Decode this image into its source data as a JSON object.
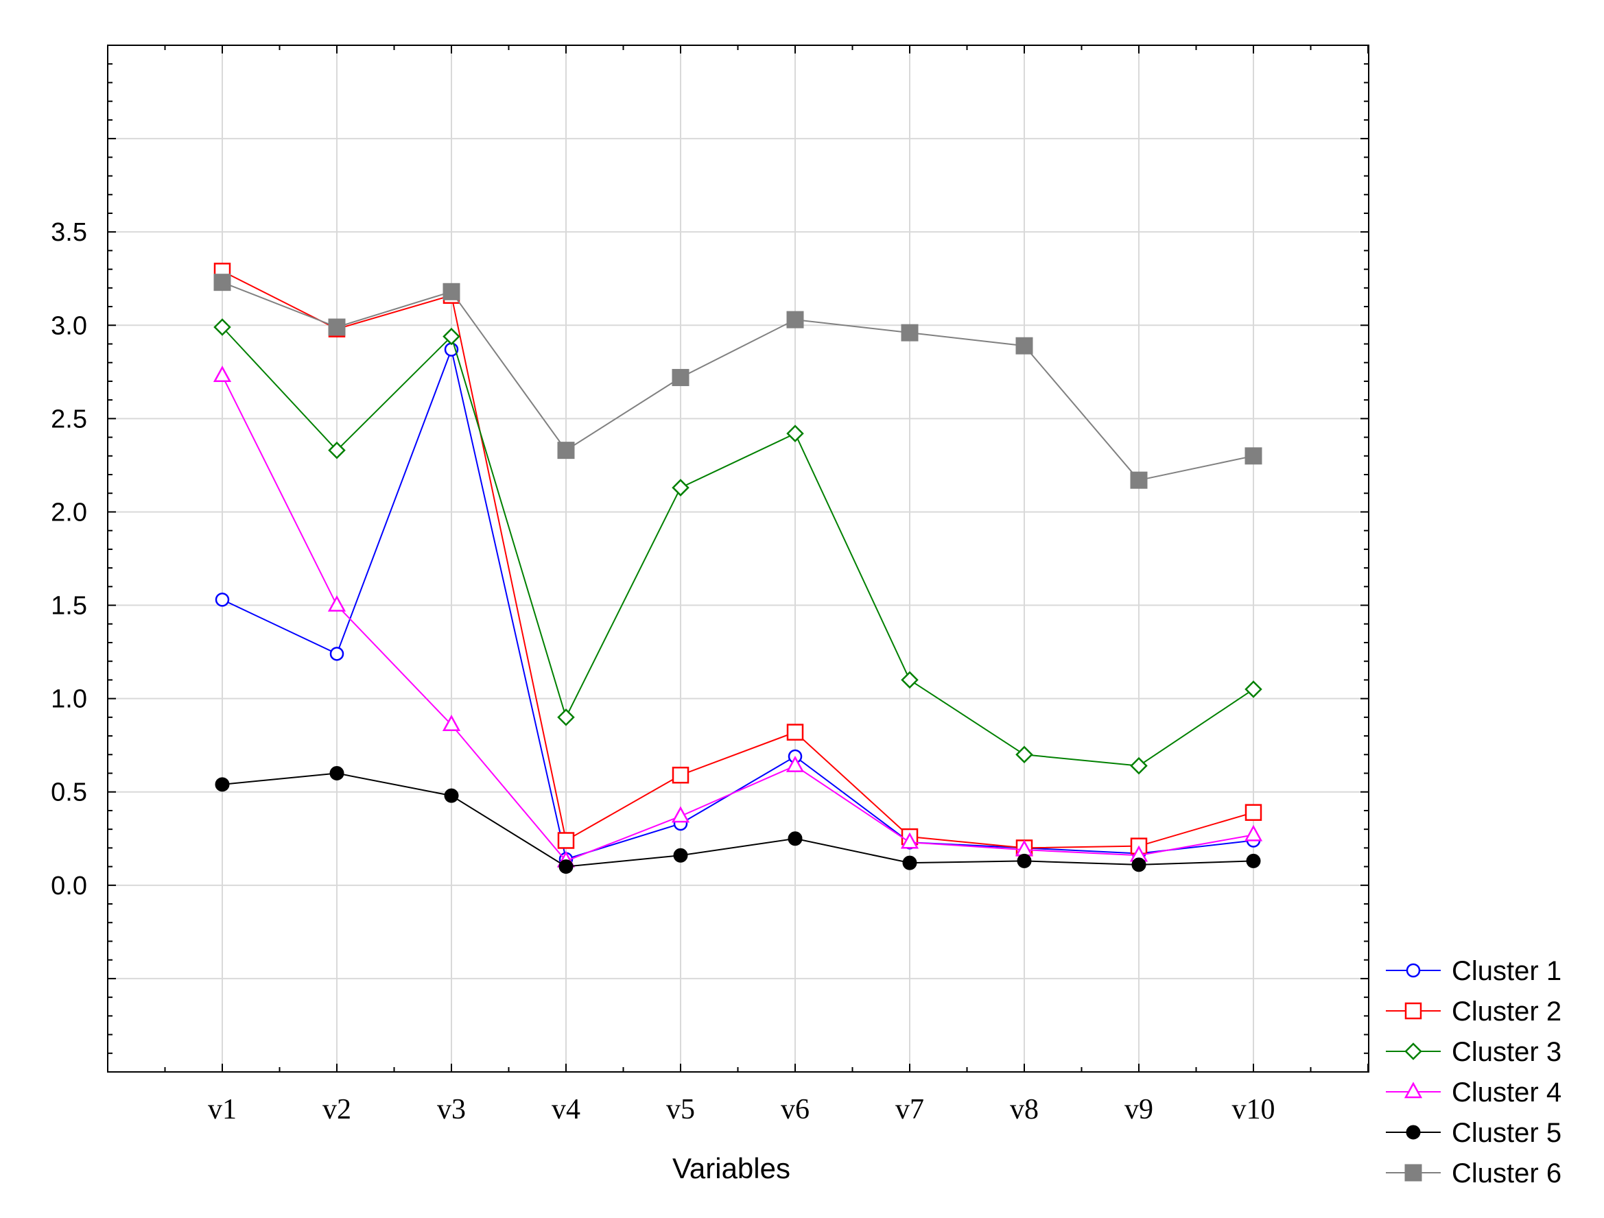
{
  "chart_data": {
    "type": "line",
    "title": "",
    "xlabel": "Variables",
    "ylabel": "",
    "categories": [
      "v1",
      "v2",
      "v3",
      "v4",
      "v5",
      "v6",
      "v7",
      "v8",
      "v9",
      "v10"
    ],
    "ylim": [
      -1.0,
      4.5
    ],
    "yticks": [
      0.0,
      0.5,
      1.0,
      1.5,
      2.0,
      2.5,
      3.0,
      3.5
    ],
    "ytick_labels": [
      "0.0",
      "0.5",
      "1.0",
      "1.5",
      "2.0",
      "2.5",
      "3.0",
      "3.5"
    ],
    "grid": true,
    "legend_position": "bottom-right",
    "series": [
      {
        "name": "Cluster 1",
        "color": "#0000ff",
        "marker": "circle-open",
        "values": [
          1.53,
          1.24,
          2.87,
          0.14,
          0.33,
          0.69,
          0.23,
          0.2,
          0.17,
          0.24
        ]
      },
      {
        "name": "Cluster 2",
        "color": "#ff0000",
        "marker": "square-open",
        "values": [
          3.29,
          2.98,
          3.16,
          0.24,
          0.59,
          0.82,
          0.26,
          0.2,
          0.21,
          0.39
        ]
      },
      {
        "name": "Cluster 3",
        "color": "#008000",
        "marker": "diamond-open",
        "values": [
          2.99,
          2.33,
          2.94,
          0.9,
          2.13,
          2.42,
          1.1,
          0.7,
          0.64,
          1.05
        ]
      },
      {
        "name": "Cluster 4",
        "color": "#ff00ff",
        "marker": "triangle-open",
        "values": [
          2.73,
          1.5,
          0.86,
          0.13,
          0.37,
          0.64,
          0.23,
          0.19,
          0.16,
          0.27
        ]
      },
      {
        "name": "Cluster 5",
        "color": "#000000",
        "marker": "circle-filled",
        "values": [
          0.54,
          0.6,
          0.48,
          0.1,
          0.16,
          0.25,
          0.12,
          0.13,
          0.11,
          0.13
        ]
      },
      {
        "name": "Cluster 6",
        "color": "#808080",
        "marker": "square-filled",
        "values": [
          3.23,
          2.99,
          3.18,
          2.33,
          2.72,
          3.03,
          2.96,
          2.89,
          2.17,
          2.3
        ]
      }
    ]
  }
}
